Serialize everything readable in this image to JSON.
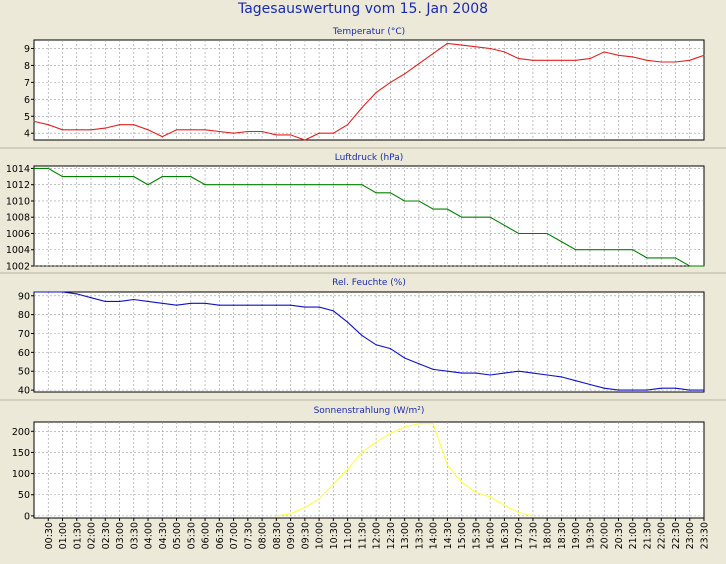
{
  "title": "Tagesauswertung vom 15. Jan 2008",
  "x_ticks": [
    "00:30",
    "01:00",
    "01:30",
    "02:00",
    "02:30",
    "03:00",
    "03:30",
    "04:00",
    "04:30",
    "05:00",
    "05:30",
    "06:00",
    "06:30",
    "07:00",
    "07:30",
    "08:00",
    "08:30",
    "09:00",
    "09:30",
    "10:00",
    "10:30",
    "11:00",
    "11:30",
    "12:00",
    "12:30",
    "13:00",
    "13:30",
    "14:00",
    "14:30",
    "15:00",
    "15:30",
    "16:00",
    "16:30",
    "17:00",
    "17:30",
    "18:00",
    "18:30",
    "19:00",
    "19:30",
    "20:00",
    "20:30",
    "21:00",
    "21:30",
    "22:00",
    "22:30",
    "23:00",
    "23:30"
  ],
  "colors": {
    "panel_bg": "#ece9d8",
    "plot_bg": "#ffffff",
    "grid": "#999999",
    "title": "#1a2bb0"
  },
  "chart_data": [
    {
      "type": "line",
      "title": "Temperatur (°C)",
      "ylim": [
        3.6,
        9.5
      ],
      "yticks": [
        4,
        5,
        6,
        7,
        8,
        9
      ],
      "series": [
        {
          "color": "#e02020",
          "x": [
            0,
            0.5,
            1,
            1.5,
            2,
            2.5,
            3,
            3.5,
            4,
            4.5,
            5,
            5.5,
            6,
            6.5,
            7,
            7.5,
            8,
            8.5,
            9,
            9.5,
            10,
            10.5,
            11,
            11.5,
            12,
            12.5,
            13,
            13.5,
            14,
            14.5,
            15,
            15.5,
            16,
            16.5,
            17,
            17.5,
            18,
            18.5,
            19,
            19.5,
            20,
            20.5,
            21,
            21.5,
            22,
            22.5,
            23,
            23.5
          ],
          "y": [
            4.7,
            4.5,
            4.2,
            4.2,
            4.2,
            4.3,
            4.5,
            4.5,
            4.2,
            3.8,
            4.2,
            4.2,
            4.2,
            4.1,
            4.0,
            4.1,
            4.1,
            3.9,
            3.9,
            3.6,
            4.0,
            4.0,
            4.5,
            5.5,
            6.4,
            7.0,
            7.5,
            8.1,
            8.7,
            9.3,
            9.2,
            9.1,
            9.0,
            8.8,
            8.4,
            8.3,
            8.3,
            8.3,
            8.3,
            8.4,
            8.8,
            8.6,
            8.5,
            8.3,
            8.2,
            8.2,
            8.3,
            8.6
          ]
        }
      ]
    },
    {
      "type": "line",
      "title": "Luftdruck (hPa)",
      "ylim": [
        1002,
        1014.3
      ],
      "yticks": [
        1002,
        1004,
        1006,
        1008,
        1010,
        1012,
        1014
      ],
      "series": [
        {
          "color": "#008000",
          "x": [
            0,
            0.5,
            1,
            1.5,
            2,
            2.5,
            3,
            3.5,
            4,
            4.5,
            5,
            5.5,
            6,
            6.5,
            7,
            7.5,
            8,
            8.5,
            9,
            9.5,
            10,
            10.5,
            11,
            11.5,
            12,
            12.5,
            13,
            13.5,
            14,
            14.5,
            15,
            15.5,
            16,
            16.5,
            17,
            17.5,
            18,
            18.5,
            19,
            19.5,
            20,
            20.5,
            21,
            21.5,
            22,
            22.5,
            23,
            23.5
          ],
          "y": [
            1014,
            1014,
            1013,
            1013,
            1013,
            1013,
            1013,
            1013,
            1012,
            1013,
            1013,
            1013,
            1012,
            1012,
            1012,
            1012,
            1012,
            1012,
            1012,
            1012,
            1012,
            1012,
            1012,
            1012,
            1011,
            1011,
            1010,
            1010,
            1009,
            1009,
            1008,
            1008,
            1008,
            1007,
            1006,
            1006,
            1006,
            1005,
            1004,
            1004,
            1004,
            1004,
            1004,
            1003,
            1003,
            1003,
            1002,
            1002
          ]
        }
      ]
    },
    {
      "type": "line",
      "title": "Rel. Feuchte (%)",
      "ylim": [
        39,
        92
      ],
      "yticks": [
        40,
        50,
        60,
        70,
        80,
        90
      ],
      "series": [
        {
          "color": "#1010c8",
          "x": [
            0,
            0.5,
            1,
            1.5,
            2,
            2.5,
            3,
            3.5,
            4,
            4.5,
            5,
            5.5,
            6,
            6.5,
            7,
            7.5,
            8,
            8.5,
            9,
            9.5,
            10,
            10.5,
            11,
            11.5,
            12,
            12.5,
            13,
            13.5,
            14,
            14.5,
            15,
            15.5,
            16,
            16.5,
            17,
            17.5,
            18,
            18.5,
            19,
            19.5,
            20,
            20.5,
            21,
            21.5,
            22,
            22.5,
            23,
            23.5
          ],
          "y": [
            92,
            92,
            92,
            91,
            89,
            87,
            87,
            88,
            87,
            86,
            85,
            86,
            86,
            85,
            85,
            85,
            85,
            85,
            85,
            84,
            84,
            82,
            76,
            69,
            64,
            62,
            57,
            54,
            51,
            50,
            49,
            49,
            48,
            49,
            50,
            49,
            48,
            47,
            45,
            43,
            41,
            40,
            40,
            40,
            41,
            41,
            40,
            40
          ]
        }
      ]
    },
    {
      "type": "line",
      "title": "Sonnenstrahlung (W/m²)",
      "ylim": [
        -5,
        222
      ],
      "yticks": [
        0,
        50,
        100,
        150,
        200
      ],
      "series": [
        {
          "color": "#ffff40",
          "x": [
            8.5,
            9,
            9.5,
            10,
            10.5,
            11,
            11.5,
            12,
            12.5,
            13,
            13.5,
            14,
            14.5,
            15,
            15.5,
            16,
            16.5,
            17,
            17.5
          ],
          "y": [
            0,
            5,
            20,
            40,
            75,
            110,
            150,
            175,
            195,
            210,
            218,
            218,
            120,
            80,
            55,
            45,
            25,
            8,
            0
          ]
        }
      ]
    }
  ]
}
